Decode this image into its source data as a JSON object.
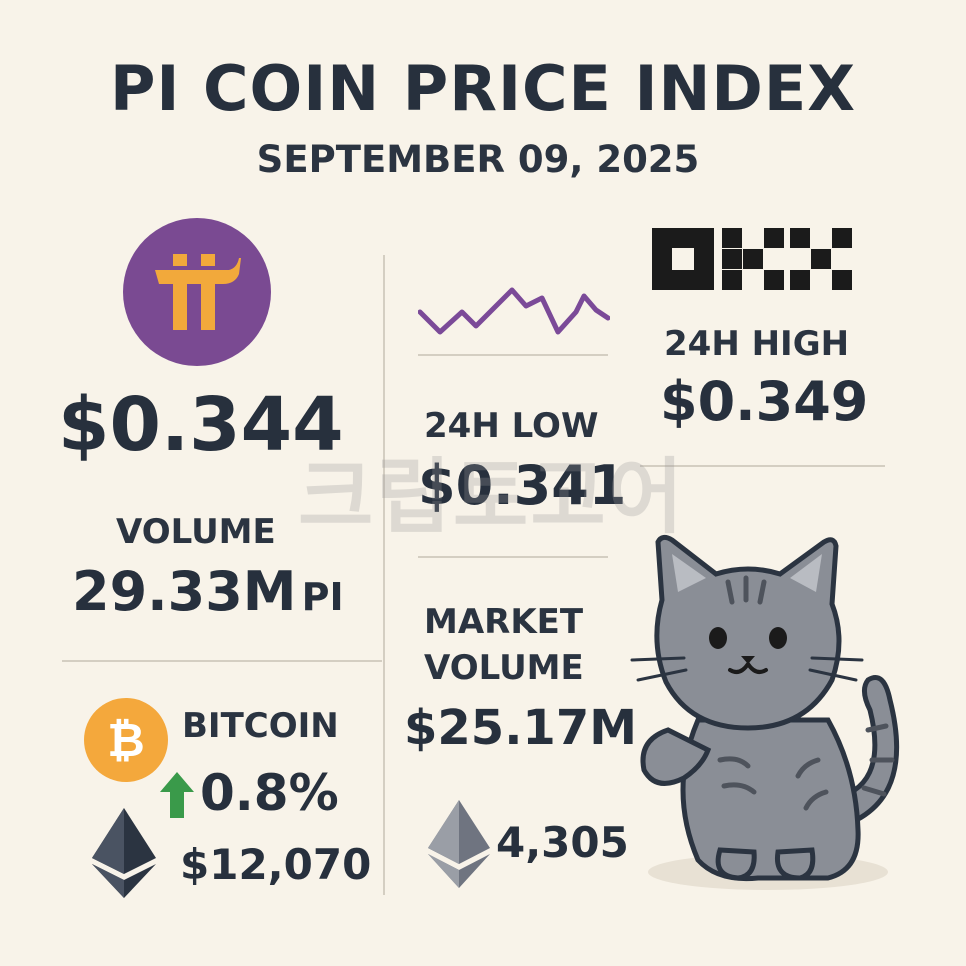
{
  "header": {
    "title": "PI COIN PRICE INDEX",
    "date": "SEPTEMBER 09, 2025"
  },
  "pi": {
    "logo_icon": "pi-network-logo-icon",
    "logo_color": "#7a4a92",
    "logo_glyph": "π",
    "glyph_color": "#f2a93b",
    "price": "$0.344",
    "volume_label": "VOLUME",
    "volume_value": "29.33M",
    "volume_unit": "PI"
  },
  "exchange": {
    "logo_icon": "okx-logo-icon",
    "high_label": "24H HIGH",
    "high_value": "$0.349",
    "low_label": "24H LOW",
    "low_value": "$0.341",
    "sparkline_icon": "sparkline-icon",
    "sparkline_color": "#7b4a98"
  },
  "market": {
    "label_line1": "MARKET",
    "label_line2": "VOLUME",
    "value": "$25.17M"
  },
  "bitcoin": {
    "icon": "bitcoin-icon",
    "icon_color": "#f4a83c",
    "label": "BITCOIN",
    "change_icon": "up-arrow-icon",
    "change_color": "#3a9a4a",
    "change": "0.8%"
  },
  "ethereum": {
    "icon": "ethereum-icon",
    "price": "$12,070",
    "right_icon": "ethereum-icon",
    "right_value": "4,305"
  },
  "mascot": {
    "icon": "cat-mascot-icon"
  },
  "watermark": {
    "text": "크립토고어"
  }
}
